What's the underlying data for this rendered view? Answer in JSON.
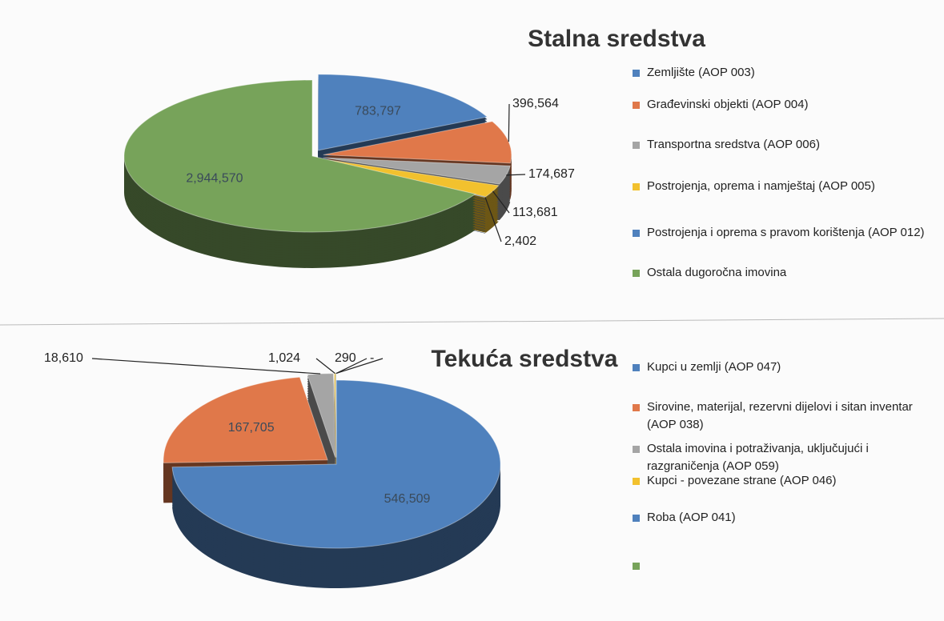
{
  "chart_data": [
    {
      "type": "pie",
      "title": "Stalna sredstva",
      "categories": [
        "Zemljište (AOP 003)",
        "Građevinski objekti (AOP 004)",
        "Transportna sredstva (AOP 006)",
        "Postrojenja, oprema i namještaj (AOP 005)",
        "Postrojenja i oprema s pravom korištenja (AOP 012)",
        "Ostala dugoročna imovina"
      ],
      "values": [
        783797,
        396564,
        174687,
        113681,
        2402,
        2944570
      ],
      "value_labels": [
        "783,797",
        "396,564",
        "174,687",
        "113,681",
        "2,402",
        "2,944,570"
      ],
      "colors": [
        "#4f81bd",
        "#e0784a",
        "#a5a5a5",
        "#f2c12e",
        "#4f81bd",
        "#77a35a"
      ]
    },
    {
      "type": "pie",
      "title": "Tekuća sredstva",
      "categories": [
        "Kupci u zemlji (AOP 047)",
        "Sirovine, materijal, rezervni dijelovi i sitan inventar (AOP 038)",
        "Ostala imovina i potraživanja, uključujući i razgraničenja (AOP 059)",
        "Kupci - povezane strane (AOP 046)",
        "Roba (AOP 041)",
        null
      ],
      "values": [
        546509,
        167705,
        18610,
        1024,
        290,
        0
      ],
      "value_labels": [
        "546,509",
        "167,705",
        "18,610",
        "1,024",
        "290",
        "-"
      ],
      "colors": [
        "#4f81bd",
        "#e0784a",
        "#a5a5a5",
        "#f2c12e",
        "#4f81bd",
        "#77a35a"
      ]
    }
  ]
}
